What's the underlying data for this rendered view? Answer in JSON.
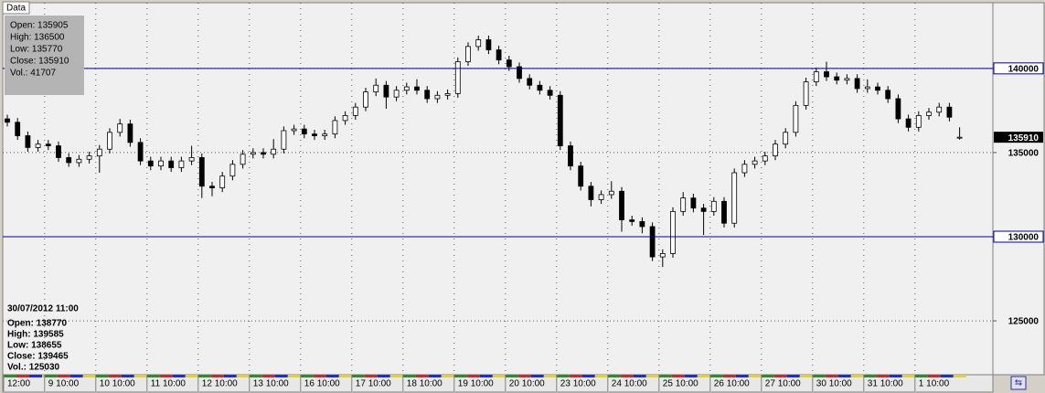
{
  "chart_data": {
    "type": "candlestick",
    "panel_title": "Data",
    "info_lines": [
      "Open: 135905",
      "High: 136500",
      "Low: 135770",
      "Close: 135910",
      "Vol.: 41707"
    ],
    "cursor_time": "30/07/2012 11:00",
    "cursor_lines": [
      "Open: 138770",
      "High: 139585",
      "Low: 138655",
      "Close: 139465",
      "Vol.: 125030"
    ],
    "categories": [
      "12:00",
      null,
      null,
      null,
      "9 10:00",
      null,
      null,
      null,
      null,
      "10 10:00",
      null,
      null,
      null,
      null,
      "11 10:00",
      null,
      null,
      null,
      null,
      "12 10:00",
      null,
      null,
      null,
      null,
      "13 10:00",
      null,
      null,
      null,
      null,
      "16 10:00",
      null,
      null,
      null,
      null,
      "17 10:00",
      null,
      null,
      null,
      null,
      "18 10:00",
      null,
      null,
      null,
      null,
      "19 10:00",
      null,
      null,
      null,
      null,
      "20 10:00",
      null,
      null,
      null,
      null,
      "23 10:00",
      null,
      null,
      null,
      null,
      "24 10:00",
      null,
      null,
      null,
      null,
      "25 10:00",
      null,
      null,
      null,
      null,
      "26 10:00",
      null,
      null,
      null,
      null,
      "27 10:00",
      null,
      null,
      null,
      null,
      "30 10:00",
      null,
      null,
      null,
      null,
      "31 10:00",
      null,
      null,
      null,
      null,
      "1 10:00",
      null,
      null,
      null,
      null
    ],
    "open": [
      137000,
      136800,
      136000,
      135300,
      135500,
      135400,
      134700,
      134400,
      134600,
      134800,
      135200,
      136200,
      136700,
      135600,
      134500,
      134200,
      134500,
      134100,
      134500,
      134700,
      133000,
      132900,
      133600,
      134300,
      134900,
      135000,
      134900,
      135200,
      136300,
      136400,
      136100,
      136000,
      136100,
      136900,
      137200,
      137700,
      138600,
      139000,
      138300,
      138700,
      138900,
      138700,
      138200,
      138400,
      138500,
      140400,
      141300,
      141700,
      141100,
      140500,
      140100,
      139400,
      139000,
      138700,
      138400,
      135400,
      134200,
      133000,
      132200,
      132500,
      132700,
      131000,
      130900,
      130600,
      128800,
      129000,
      131500,
      132300,
      131700,
      131500,
      132100,
      130800,
      133800,
      134300,
      134500,
      134800,
      135500,
      136200,
      137800,
      139200,
      139800,
      139500,
      139300,
      139400,
      138800,
      138900,
      138700,
      138200,
      137000,
      136500,
      137200,
      137400,
      137700,
      135905
    ],
    "high": [
      137250,
      137050,
      136250,
      135750,
      135750,
      135650,
      134950,
      134850,
      135050,
      135450,
      136450,
      137000,
      136950,
      135850,
      134750,
      134750,
      134750,
      134750,
      135400,
      134950,
      133250,
      133850,
      134550,
      135150,
      135250,
      135250,
      135800,
      136550,
      136650,
      136650,
      136350,
      136350,
      137150,
      137450,
      137950,
      138850,
      139400,
      139250,
      138950,
      139150,
      139350,
      138950,
      138650,
      138750,
      140650,
      141550,
      141950,
      141950,
      141350,
      140750,
      140350,
      139650,
      139250,
      138950,
      138650,
      135650,
      134450,
      133250,
      132750,
      133300,
      132950,
      131250,
      131150,
      130850,
      129250,
      131750,
      132650,
      132550,
      131950,
      132350,
      132350,
      134050,
      134550,
      134750,
      135050,
      135750,
      136450,
      138050,
      139450,
      140050,
      140400,
      139750,
      139650,
      139650,
      139350,
      139150,
      138950,
      138450,
      137250,
      137450,
      137650,
      137950,
      137950,
      136500
    ],
    "low": [
      136550,
      135750,
      135050,
      135050,
      135150,
      134450,
      134150,
      134150,
      134350,
      133800,
      134950,
      135950,
      135350,
      134250,
      133950,
      133950,
      133850,
      133850,
      134250,
      132300,
      132400,
      132650,
      133350,
      134050,
      134650,
      134650,
      134650,
      134950,
      136050,
      135850,
      135750,
      135750,
      135850,
      136650,
      136950,
      137450,
      138350,
      137600,
      138050,
      138450,
      138450,
      137950,
      137950,
      138150,
      138250,
      140150,
      141050,
      140850,
      140250,
      139850,
      139150,
      138750,
      138450,
      138150,
      135150,
      133950,
      132750,
      131800,
      131950,
      132250,
      130300,
      130650,
      130200,
      128550,
      128200,
      128750,
      131250,
      131450,
      130100,
      131250,
      130550,
      130550,
      133550,
      134050,
      134250,
      134550,
      135250,
      135950,
      137550,
      138950,
      139250,
      139050,
      139050,
      138550,
      138550,
      138450,
      137950,
      136750,
      136250,
      136250,
      136950,
      137150,
      136850,
      135770
    ],
    "close": [
      136800,
      136000,
      135300,
      135500,
      135400,
      134700,
      134400,
      134600,
      134800,
      135200,
      136200,
      136700,
      135600,
      134500,
      134200,
      134500,
      134100,
      134500,
      134700,
      133000,
      132900,
      133600,
      134300,
      134900,
      135000,
      134900,
      135200,
      136300,
      136400,
      136100,
      136000,
      136100,
      136900,
      137200,
      137700,
      138600,
      139000,
      138300,
      138700,
      138900,
      138700,
      138200,
      138400,
      138500,
      140400,
      141300,
      141700,
      141100,
      140500,
      140100,
      139400,
      139000,
      138700,
      138400,
      135400,
      134200,
      133000,
      132200,
      132500,
      132700,
      131000,
      130900,
      130600,
      128800,
      129000,
      131500,
      132300,
      131700,
      131500,
      132100,
      130800,
      133800,
      134300,
      134500,
      134800,
      135500,
      136200,
      137800,
      139200,
      139800,
      139500,
      139300,
      139400,
      138800,
      138900,
      138700,
      138200,
      137000,
      136500,
      137200,
      137400,
      137700,
      137100,
      135910
    ],
    "ylim": [
      121800,
      143900
    ],
    "yticks": [
      125000,
      130000,
      135000,
      140000
    ],
    "hlines": [
      140000,
      130000
    ],
    "hline_color": "#0000a0",
    "last_price": 135910,
    "up_color": "#ffffff",
    "down_color": "#000000",
    "grid": true
  }
}
